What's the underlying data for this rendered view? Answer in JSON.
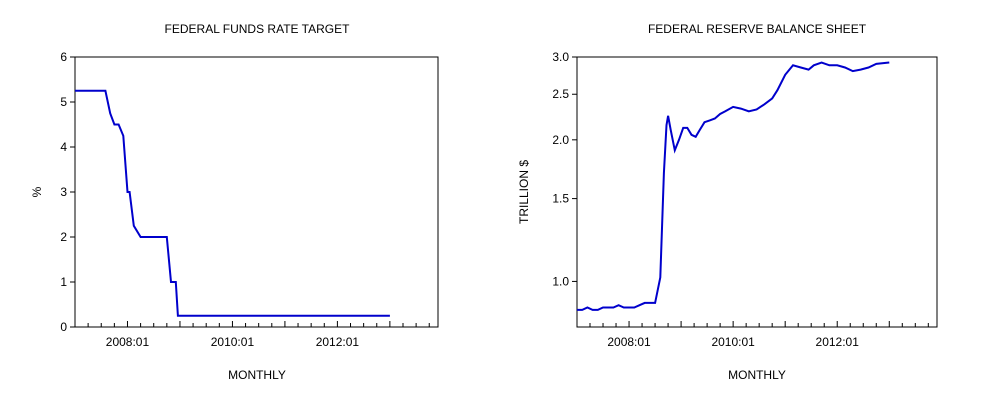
{
  "chart_data": [
    {
      "type": "line",
      "title": "FEDERAL FUNDS RATE TARGET",
      "xlabel": "MONTHLY",
      "ylabel": "%",
      "color": "#0000cc",
      "x_tick_labels": [
        "2008:01",
        "2010:01",
        "2012:01"
      ],
      "x_tick_years": [
        2008,
        2010,
        2012
      ],
      "y_tick_labels": [
        "0",
        "1",
        "2",
        "3",
        "4",
        "5",
        "6"
      ],
      "y_ticks": [
        0,
        1,
        2,
        3,
        4,
        5,
        6
      ],
      "xlim": [
        2007.0,
        2013.917
      ],
      "ylim": [
        0,
        6
      ],
      "series": [
        {
          "x": [
            2007.0,
            2007.58,
            2007.67,
            2007.75,
            2007.83,
            2007.92,
            2008.0,
            2008.04,
            2008.12,
            2008.25,
            2008.33,
            2008.42,
            2008.5,
            2008.58,
            2008.67,
            2008.75,
            2008.79,
            2008.83,
            2008.92,
            2008.96,
            2009.0,
            2009.5,
            2010.0,
            2010.5,
            2011.0,
            2011.5,
            2012.0,
            2012.5,
            2013.0
          ],
          "y": [
            5.25,
            5.25,
            4.75,
            4.5,
            4.5,
            4.25,
            3.0,
            3.0,
            2.25,
            2.0,
            2.0,
            2.0,
            2.0,
            2.0,
            2.0,
            2.0,
            1.5,
            1.0,
            1.0,
            0.25,
            0.25,
            0.25,
            0.25,
            0.25,
            0.25,
            0.25,
            0.25,
            0.25,
            0.25
          ]
        }
      ]
    },
    {
      "type": "line",
      "title": "FEDERAL RESERVE BALANCE SHEET",
      "xlabel": "MONTHLY",
      "ylabel": "TRILLION $",
      "color": "#0000cc",
      "scale": "log",
      "x_tick_labels": [
        "2008:01",
        "2010:01",
        "2012:01"
      ],
      "x_tick_years": [
        2008,
        2010,
        2012
      ],
      "y_tick_labels": [
        "1.0",
        "1.5",
        "2.0",
        "2.5",
        "3.0"
      ],
      "y_ticks": [
        1.0,
        1.5,
        2.0,
        2.5,
        3.0
      ],
      "xlim": [
        2007.0,
        2013.917
      ],
      "ylim": [
        0.8,
        3.0
      ],
      "series": [
        {
          "x": [
            2007.0,
            2007.1,
            2007.2,
            2007.3,
            2007.4,
            2007.5,
            2007.6,
            2007.7,
            2007.8,
            2007.9,
            2008.0,
            2008.1,
            2008.2,
            2008.3,
            2008.4,
            2008.5,
            2008.6,
            2008.67,
            2008.72,
            2008.75,
            2008.8,
            2008.88,
            2008.96,
            2009.04,
            2009.12,
            2009.2,
            2009.28,
            2009.36,
            2009.45,
            2009.55,
            2009.65,
            2009.75,
            2009.85,
            2010.0,
            2010.15,
            2010.3,
            2010.45,
            2010.6,
            2010.75,
            2010.85,
            2011.0,
            2011.15,
            2011.3,
            2011.45,
            2011.55,
            2011.7,
            2011.85,
            2012.0,
            2012.15,
            2012.3,
            2012.45,
            2012.6,
            2012.75,
            2013.0
          ],
          "y": [
            0.87,
            0.87,
            0.88,
            0.87,
            0.87,
            0.88,
            0.88,
            0.88,
            0.89,
            0.88,
            0.88,
            0.88,
            0.89,
            0.9,
            0.9,
            0.9,
            1.02,
            1.7,
            2.15,
            2.25,
            2.1,
            1.9,
            2.0,
            2.12,
            2.12,
            2.05,
            2.03,
            2.1,
            2.18,
            2.2,
            2.22,
            2.27,
            2.3,
            2.35,
            2.33,
            2.3,
            2.32,
            2.38,
            2.45,
            2.55,
            2.75,
            2.88,
            2.85,
            2.82,
            2.88,
            2.92,
            2.88,
            2.88,
            2.85,
            2.8,
            2.82,
            2.85,
            2.9,
            2.92
          ]
        }
      ]
    }
  ]
}
